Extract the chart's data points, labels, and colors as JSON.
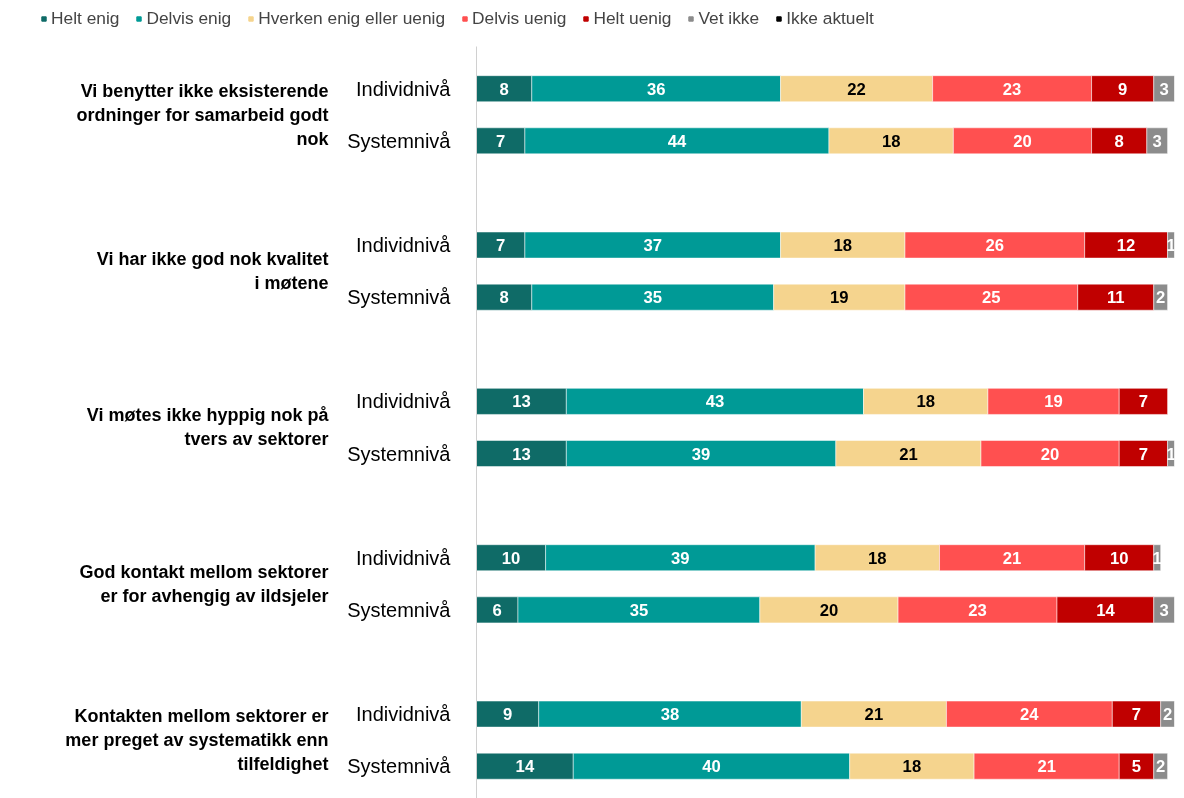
{
  "chart_data": {
    "type": "bar",
    "orientation": "horizontal",
    "stacked": true,
    "data_labels": true,
    "legend": "top",
    "grid": false,
    "tick_labels": "y",
    "xlim": [
      0,
      101
    ],
    "categories": [
      "Individnivå",
      "Systemnivå",
      "Individnivå",
      "Systemnivå",
      "Individnivå",
      "Systemnivå",
      "Individnivå",
      "Systemnivå",
      "Individnivå",
      "Systemnivå"
    ],
    "annotations": [
      "Vi benytter ikke eksisterende ordninger for samarbeid godt nok",
      "Vi har ikke god nok kvalitet i møtene",
      "Vi møtes ikke hyppig nok på tvers av sektorer",
      "God kontakt mellom sektorer er for avhengig av ildsjeler",
      "Kontakten mellom sektorer er mer preget av systematikk enn tilfeldighet"
    ],
    "series": [
      {
        "name": "Helt enig",
        "color": "#0f6b67",
        "values": [
          8,
          7,
          7,
          8,
          13,
          13,
          10,
          6,
          9,
          14
        ]
      },
      {
        "name": "Delvis enig",
        "color": "#009a96",
        "values": [
          36,
          44,
          37,
          35,
          43,
          39,
          39,
          35,
          38,
          40
        ]
      },
      {
        "name": "Hverken enig eller uenig",
        "color": "#f5d48e",
        "values": [
          22,
          18,
          18,
          19,
          18,
          21,
          18,
          20,
          21,
          18
        ]
      },
      {
        "name": "Delvis uenig",
        "color": "#ff5050",
        "values": [
          23,
          20,
          26,
          25,
          19,
          20,
          21,
          23,
          24,
          21
        ]
      },
      {
        "name": "Helt uenig",
        "color": "#c00000",
        "values": [
          9,
          8,
          12,
          11,
          7,
          7,
          10,
          14,
          7,
          5
        ]
      },
      {
        "name": "Vet ikke",
        "color": "#8c8c8c",
        "values": [
          3,
          3,
          1,
          2,
          null,
          1,
          1,
          3,
          2,
          2
        ]
      },
      {
        "name": "Ikke aktuelt",
        "color": "#000000",
        "values": [
          null,
          null,
          null,
          null,
          null,
          null,
          null,
          null,
          null,
          null
        ]
      }
    ]
  }
}
